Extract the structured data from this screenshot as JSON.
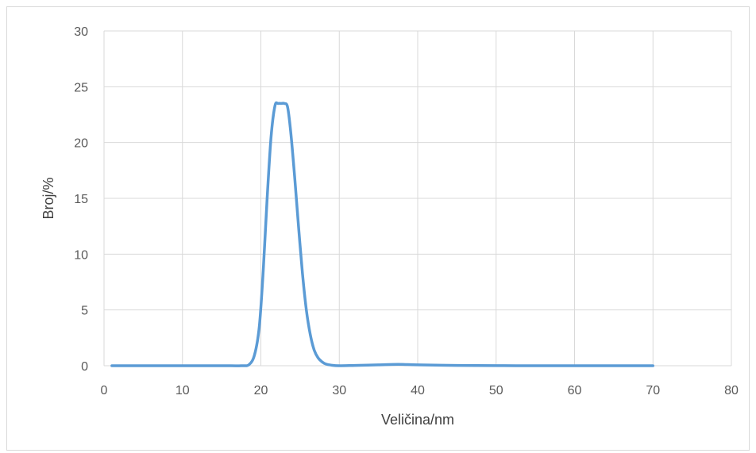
{
  "chart_data": {
    "type": "line",
    "title": "",
    "xlabel": "Veličina/nm",
    "ylabel": "Broj/%",
    "xlim": [
      0,
      80
    ],
    "ylim": [
      0,
      30
    ],
    "xticks": [
      0,
      10,
      20,
      30,
      40,
      50,
      60,
      70,
      80
    ],
    "yticks": [
      0,
      5,
      10,
      15,
      20,
      25,
      30
    ],
    "grid": true,
    "legend": "none",
    "series": [
      {
        "color": "#5b9bd5",
        "x": [
          1,
          5,
          10,
          15,
          17.5,
          18.5,
          19.2,
          19.8,
          20.3,
          20.8,
          21.3,
          21.8,
          22.2,
          22.6,
          23.0,
          23.4,
          23.8,
          24.3,
          24.8,
          25.3,
          25.8,
          26.3,
          26.8,
          27.3,
          27.8,
          28.3,
          29.0,
          30.0,
          32.0,
          35.0,
          37.5,
          40.0,
          45.0,
          50.0,
          55.0,
          60.0,
          65.0,
          70.0
        ],
        "y": [
          0,
          0,
          0,
          0,
          0,
          0.1,
          1.0,
          3.5,
          8.5,
          15.0,
          20.5,
          23.3,
          23.5,
          23.5,
          23.5,
          23.2,
          21.0,
          17.0,
          12.5,
          8.3,
          5.0,
          2.8,
          1.4,
          0.7,
          0.35,
          0.15,
          0.05,
          0,
          0.03,
          0.08,
          0.12,
          0.08,
          0.03,
          0.01,
          0,
          0,
          0,
          0
        ]
      }
    ]
  }
}
